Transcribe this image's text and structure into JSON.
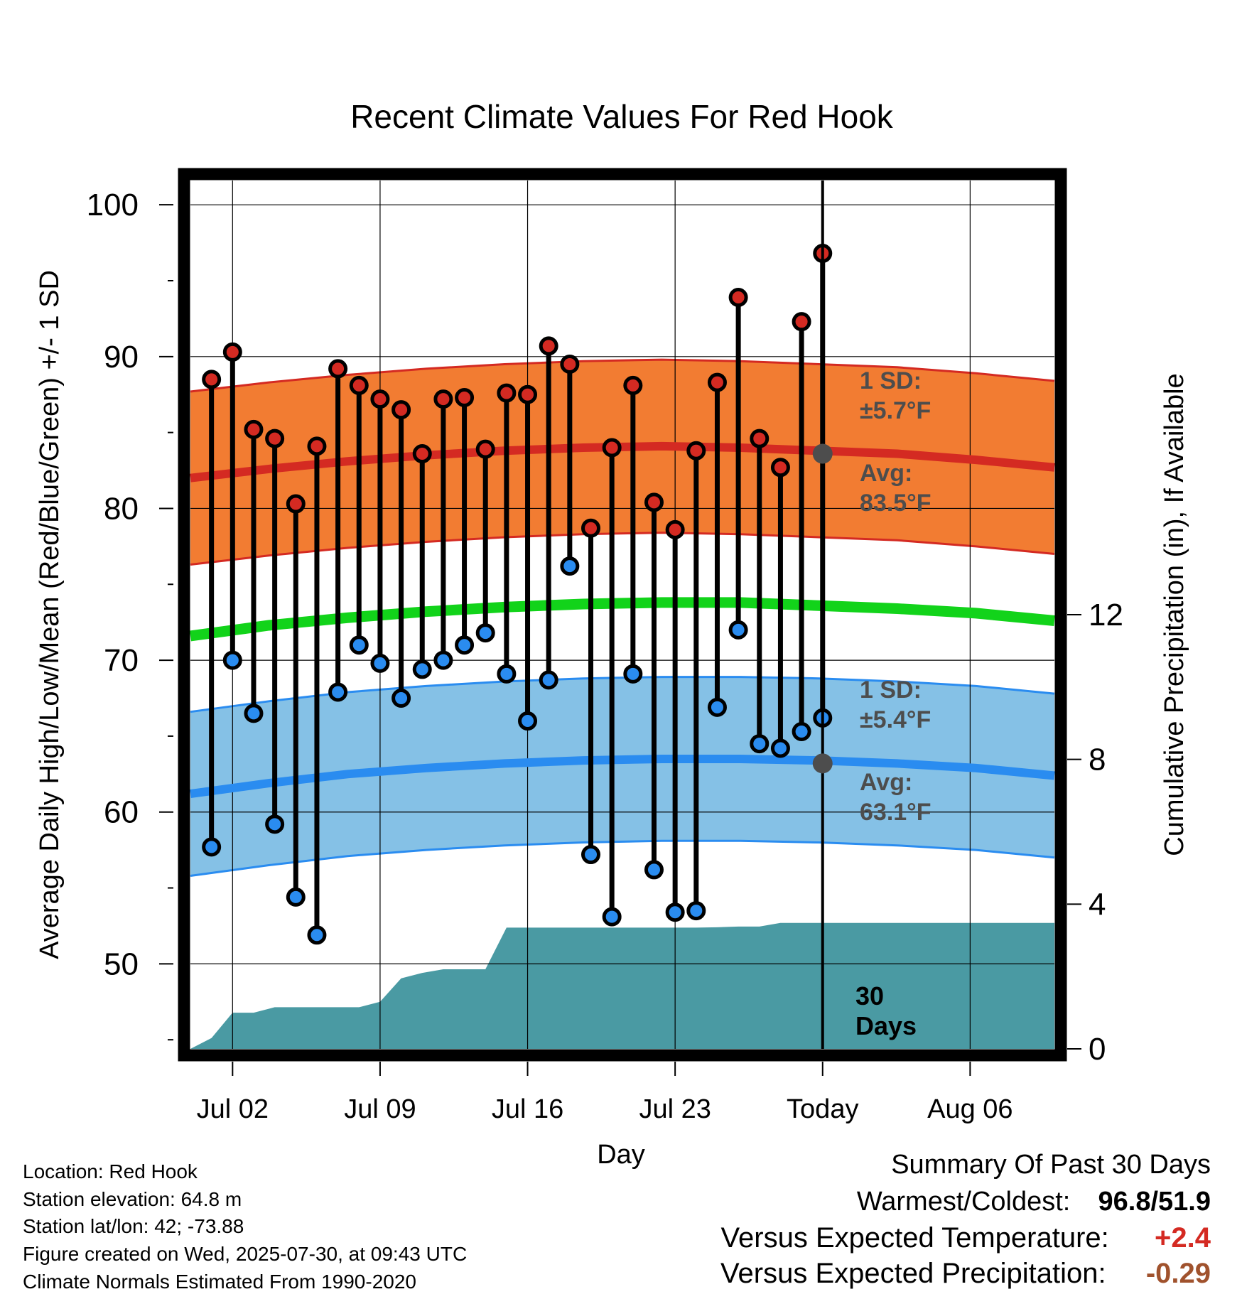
{
  "chart_data": {
    "type": "line",
    "title": "Recent Climate Values For Red Hook",
    "xlabel": "Day",
    "ylabel": "Average Daily High/Low/Mean (Red/Blue/Green) +/- 1 SD",
    "y2label": "Cumulative Precipitation (in), If Available",
    "x_ticks": [
      "Jul 02",
      "Jul 09",
      "Jul 16",
      "Jul 23",
      "Today",
      "Aug 06"
    ],
    "y_ticks": [
      50,
      60,
      70,
      80,
      90,
      100
    ],
    "y2_ticks": [
      0,
      4,
      8,
      12
    ],
    "ylim": [
      44.4,
      101.6
    ],
    "y2lim": [
      0,
      24
    ],
    "grid": true,
    "x_day_range": [
      0,
      41
    ],
    "today_index": 30,
    "window_label_1": "30",
    "window_label_2": "Days",
    "days": [
      1,
      2,
      3,
      4,
      5,
      6,
      7,
      8,
      9,
      10,
      11,
      12,
      13,
      14,
      15,
      16,
      17,
      18,
      19,
      20,
      21,
      22,
      23,
      24,
      25,
      26,
      27,
      28,
      29,
      30
    ],
    "highs": [
      88.5,
      90.3,
      85.2,
      84.6,
      80.3,
      84.1,
      89.2,
      88.1,
      87.2,
      86.5,
      83.6,
      87.2,
      87.3,
      83.9,
      87.6,
      87.5,
      90.7,
      89.5,
      78.7,
      84.0,
      88.1,
      80.4,
      78.6,
      83.8,
      88.3,
      93.9,
      84.6,
      82.7,
      92.3,
      96.8
    ],
    "lows": [
      57.7,
      70.0,
      66.5,
      59.2,
      54.4,
      51.9,
      67.9,
      71.0,
      69.8,
      67.5,
      69.4,
      70.0,
      71.0,
      71.8,
      69.1,
      66.0,
      68.7,
      76.2,
      57.2,
      53.1,
      69.1,
      56.2,
      53.4,
      53.5,
      66.9,
      72.0,
      64.5,
      64.2,
      65.3,
      66.2
    ],
    "normal_high": [
      82.0,
      82.6,
      83.1,
      83.5,
      83.8,
      84.0,
      84.1,
      84.0,
      83.8,
      83.6,
      83.2,
      82.7
    ],
    "normal_low": [
      61.2,
      61.9,
      62.5,
      62.9,
      63.2,
      63.4,
      63.5,
      63.5,
      63.4,
      63.2,
      62.9,
      62.4
    ],
    "normal_mean": [
      71.6,
      72.3,
      72.8,
      73.2,
      73.5,
      73.7,
      73.8,
      73.8,
      73.6,
      73.4,
      73.1,
      72.6
    ],
    "sd_high": 5.7,
    "sd_low": 5.4,
    "precip_days": [
      0,
      1,
      2,
      3,
      4,
      5,
      6,
      7,
      8,
      9,
      10,
      11,
      12,
      13,
      14,
      15,
      16,
      17,
      18,
      19,
      20,
      21,
      22,
      23,
      24,
      25,
      26,
      27,
      28,
      29,
      30,
      31,
      32,
      33,
      34,
      35,
      36,
      37,
      38,
      39,
      40,
      41
    ],
    "precip_cum": [
      0,
      0.3,
      1.0,
      1.0,
      1.15,
      1.15,
      1.15,
      1.15,
      1.15,
      1.3,
      1.95,
      2.1,
      2.2,
      2.2,
      2.2,
      3.35,
      3.35,
      3.35,
      3.35,
      3.35,
      3.35,
      3.35,
      3.35,
      3.35,
      3.35,
      3.36,
      3.38,
      3.38,
      3.48,
      3.48,
      3.48,
      3.48,
      3.48,
      3.48,
      3.48,
      3.48,
      3.48,
      3.48,
      3.48,
      3.48,
      3.48,
      3.48
    ],
    "high_sd_label": "1 SD:",
    "high_sd_value": "±5.7°F",
    "high_avg_label": "Avg:",
    "high_avg_value": "83.5°F",
    "low_sd_label": "1 SD:",
    "low_sd_value": "±5.4°F",
    "low_avg_label": "Avg:",
    "low_avg_value": "63.1°F",
    "colors": {
      "sd_high_fill": "#f27c32",
      "sd_high_edge": "#d42a22",
      "normal_high": "#d42a22",
      "sd_low_fill": "#85c1e6",
      "sd_low_edge": "#2a8cf0",
      "normal_low": "#2a8cf0",
      "normal_mean": "#12d31a",
      "precip": "#4a9aa3",
      "high_dot": "#d42a22",
      "low_dot": "#2a8cf0",
      "annotation": "#4d4d4d"
    }
  },
  "metadata": {
    "location": "Location: Red Hook",
    "elevation": "Station elevation: 64.8 m",
    "latlon": "Station lat/lon: 42; -73.88",
    "created": "Figure created on Wed, 2025-07-30, at 09:43 UTC",
    "normals": "Climate Normals Estimated From 1990-2020"
  },
  "summary": {
    "title": "Summary Of Past 30 Days",
    "warmest_label": "Warmest/Coldest:",
    "warmest_value": "96.8",
    "slash": "/",
    "coldest_value": "51.9",
    "temp_label": "Versus Expected Temperature:",
    "temp_value": "+2.4",
    "temp_color": "#d42a22",
    "precip_label": "Versus Expected Precipitation:",
    "precip_value": "-0.29",
    "precip_color": "#a0522d"
  }
}
